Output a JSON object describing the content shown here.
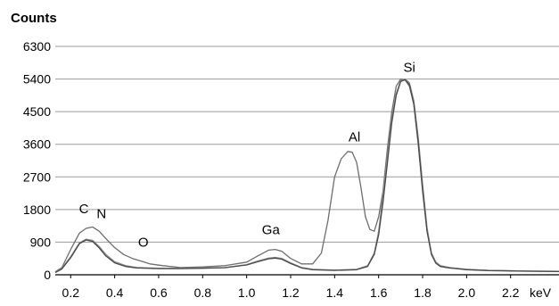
{
  "chart_data": {
    "type": "line",
    "title": "",
    "ylabel": "Counts",
    "xunit": "keV",
    "ylim": [
      0,
      6300
    ],
    "xlim": [
      0.13,
      2.42
    ],
    "grid": true,
    "yticks": [
      0,
      900,
      1800,
      2700,
      3600,
      4500,
      5400,
      6300
    ],
    "xticks": [
      {
        "value": 0.2,
        "label": "0.2"
      },
      {
        "value": 0.4,
        "label": "0.4"
      },
      {
        "value": 0.6,
        "label": "0.6"
      },
      {
        "value": 0.8,
        "label": "0.8"
      },
      {
        "value": 1.0,
        "label": "1.0"
      },
      {
        "value": 1.2,
        "label": "1.2"
      },
      {
        "value": 1.4,
        "label": "1.4"
      },
      {
        "value": 1.6,
        "label": "1.6"
      },
      {
        "value": 1.8,
        "label": "1.8"
      },
      {
        "value": 2.0,
        "label": "2.0"
      },
      {
        "value": 2.2,
        "label": "2.2"
      }
    ],
    "annotations": [
      {
        "text": "C",
        "x": 0.26,
        "y": 1700
      },
      {
        "text": "N",
        "x": 0.34,
        "y": 1560
      },
      {
        "text": "O",
        "x": 0.53,
        "y": 780
      },
      {
        "text": "Ga",
        "x": 1.11,
        "y": 1120
      },
      {
        "text": "Al",
        "x": 1.49,
        "y": 3680
      },
      {
        "text": "Si",
        "x": 1.74,
        "y": 5600
      }
    ],
    "series": [
      {
        "color": "#6e6e6e",
        "x": [
          0.13,
          0.16,
          0.2,
          0.24,
          0.27,
          0.3,
          0.33,
          0.36,
          0.4,
          0.44,
          0.48,
          0.52,
          0.56,
          0.62,
          0.7,
          0.8,
          0.9,
          1.0,
          1.05,
          1.1,
          1.13,
          1.16,
          1.2,
          1.25,
          1.3,
          1.34,
          1.37,
          1.4,
          1.43,
          1.46,
          1.48,
          1.5,
          1.52,
          1.54,
          1.56,
          1.58,
          1.6,
          1.62,
          1.64,
          1.66,
          1.68,
          1.7,
          1.72,
          1.74,
          1.76,
          1.78,
          1.8,
          1.82,
          1.84,
          1.86,
          1.88,
          1.92,
          2.0,
          2.1,
          2.2,
          2.3,
          2.42
        ],
        "y": [
          80,
          200,
          700,
          1150,
          1280,
          1320,
          1200,
          1000,
          750,
          560,
          450,
          380,
          300,
          250,
          200,
          220,
          250,
          350,
          520,
          680,
          700,
          650,
          450,
          300,
          300,
          600,
          1500,
          2700,
          3200,
          3400,
          3380,
          3100,
          2400,
          1600,
          1250,
          1200,
          1600,
          2300,
          3500,
          4500,
          5200,
          5400,
          5380,
          5200,
          4700,
          3600,
          2300,
          1200,
          600,
          350,
          250,
          200,
          150,
          120,
          110,
          100,
          95
        ]
      },
      {
        "color": "#8c8c8c",
        "x": [
          0.13,
          0.16,
          0.2,
          0.24,
          0.27,
          0.3,
          0.33,
          0.36,
          0.4,
          0.45,
          0.5,
          0.6,
          0.7,
          0.8,
          0.9,
          1.0,
          1.05,
          1.1,
          1.13,
          1.16,
          1.2,
          1.25,
          1.3,
          1.4,
          1.5,
          1.55,
          1.58,
          1.6,
          1.62,
          1.64,
          1.66,
          1.68,
          1.7,
          1.72,
          1.74,
          1.76,
          1.78,
          1.8,
          1.82,
          1.84,
          1.86,
          1.88,
          1.92,
          2.0,
          2.1,
          2.2,
          2.3,
          2.42
        ],
        "y": [
          70,
          180,
          500,
          880,
          980,
          950,
          780,
          560,
          360,
          250,
          200,
          180,
          180,
          190,
          200,
          280,
          380,
          460,
          480,
          450,
          330,
          200,
          150,
          130,
          150,
          250,
          600,
          1200,
          2200,
          3300,
          4300,
          5000,
          5350,
          5400,
          5300,
          4800,
          3800,
          2500,
          1300,
          600,
          350,
          250,
          200,
          150,
          120,
          110,
          100,
          95
        ]
      },
      {
        "color": "#4a4a4a",
        "x": [
          0.13,
          0.16,
          0.2,
          0.24,
          0.27,
          0.3,
          0.33,
          0.36,
          0.4,
          0.45,
          0.5,
          0.6,
          0.7,
          0.8,
          0.9,
          1.0,
          1.05,
          1.1,
          1.13,
          1.16,
          1.2,
          1.25,
          1.3,
          1.4,
          1.5,
          1.55,
          1.58,
          1.6,
          1.62,
          1.64,
          1.66,
          1.68,
          1.7,
          1.72,
          1.74,
          1.76,
          1.78,
          1.8,
          1.82,
          1.84,
          1.86,
          1.88,
          1.92,
          2.0,
          2.1,
          2.2,
          2.3,
          2.42
        ],
        "y": [
          60,
          160,
          470,
          860,
          960,
          920,
          740,
          520,
          330,
          230,
          190,
          170,
          170,
          180,
          195,
          270,
          360,
          440,
          460,
          430,
          310,
          190,
          140,
          120,
          140,
          230,
          560,
          1100,
          2000,
          3100,
          4200,
          4950,
          5330,
          5380,
          5250,
          4700,
          3650,
          2350,
          1200,
          560,
          320,
          230,
          190,
          140,
          115,
          105,
          95,
          90
        ]
      }
    ]
  }
}
